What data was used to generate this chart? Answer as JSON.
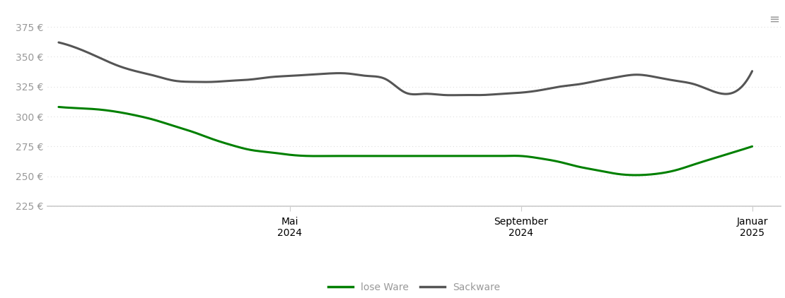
{
  "lose_ware": {
    "x": [
      0,
      0.33,
      0.67,
      1,
      1.33,
      1.67,
      2,
      2.33,
      2.67,
      3,
      3.33,
      3.67,
      4,
      4.33,
      4.67,
      5,
      5.33,
      5.67,
      6,
      6.33,
      6.67,
      7,
      7.33,
      7.67,
      8,
      8.33,
      8.67,
      9,
      9.33,
      9.67,
      10,
      10.33,
      10.67,
      11,
      11.33,
      11.67,
      12
    ],
    "y": [
      308,
      307,
      306,
      304,
      301,
      297,
      292,
      287,
      281,
      276,
      272,
      270,
      268,
      267,
      267,
      267,
      267,
      267,
      267,
      267,
      267,
      267,
      267,
      267,
      267,
      265,
      262,
      258,
      255,
      252,
      251,
      252,
      255,
      260,
      265,
      270,
      275
    ],
    "color": "#008000",
    "label": "lose Ware",
    "linewidth": 2.2
  },
  "sackware": {
    "x": [
      0,
      0.33,
      0.67,
      1,
      1.33,
      1.67,
      2,
      2.33,
      2.67,
      3,
      3.33,
      3.67,
      4,
      4.33,
      4.67,
      5,
      5.33,
      5.67,
      6,
      6.33,
      6.67,
      7,
      7.33,
      7.67,
      8,
      8.33,
      8.67,
      9,
      9.33,
      9.67,
      10,
      10.33,
      10.67,
      11,
      11.33,
      11.67,
      12
    ],
    "y": [
      362,
      357,
      350,
      343,
      338,
      334,
      330,
      329,
      329,
      330,
      331,
      333,
      334,
      335,
      336,
      336,
      334,
      331,
      320,
      319,
      318,
      318,
      318,
      319,
      320,
      322,
      325,
      327,
      330,
      333,
      335,
      333,
      330,
      327,
      321,
      320,
      338
    ],
    "color": "#555555",
    "label": "Sackware",
    "linewidth": 2.2
  },
  "x_tick_positions": [
    4,
    8,
    12
  ],
  "x_tick_labels": [
    "Mai\n2024",
    "September\n2024",
    "Januar\n2025"
  ],
  "y_ticks": [
    225,
    250,
    275,
    300,
    325,
    350,
    375
  ],
  "y_tick_labels": [
    "225 €",
    "250 €",
    "275 €",
    "300 €",
    "325 €",
    "350 €",
    "375 €"
  ],
  "ylim": [
    218,
    390
  ],
  "xlim": [
    -0.2,
    12.5
  ],
  "bg_color": "#ffffff",
  "grid_color": "#dddddd",
  "tick_color": "#999999",
  "spine_color": "#cccccc",
  "hamburger_icon": "≡"
}
